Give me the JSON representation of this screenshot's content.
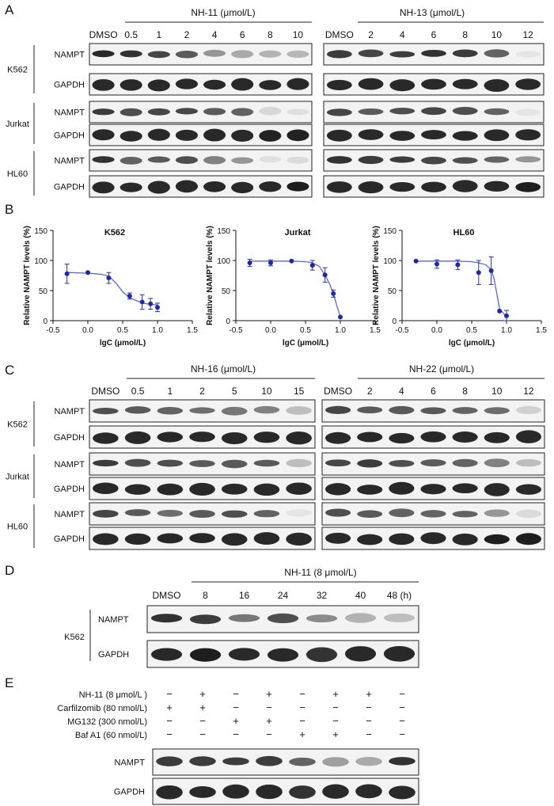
{
  "panels": {
    "A": {
      "letter": "A",
      "left": {
        "treatment": "NH-11 (μmol/L)",
        "lanes": [
          "DMSO",
          "0.5",
          "1",
          "2",
          "4",
          "6",
          "8",
          "10"
        ],
        "cells": [
          {
            "name": "K562",
            "rows": [
              {
                "label": "NAMPT",
                "kind": "nampt",
                "intensity": [
                  1.0,
                  0.95,
                  0.85,
                  0.75,
                  0.45,
                  0.35,
                  0.3,
                  0.28
                ]
              },
              {
                "label": "GAPDH",
                "kind": "gapdh",
                "intensity": [
                  0.95,
                  0.95,
                  0.95,
                  0.95,
                  0.95,
                  0.95,
                  0.95,
                  0.95
                ]
              }
            ]
          },
          {
            "name": "Jurkat",
            "rows": [
              {
                "label": "NAMPT",
                "kind": "nampt",
                "intensity": [
                  0.9,
                  0.8,
                  0.85,
                  0.85,
                  0.75,
                  0.7,
                  0.12,
                  0.08
                ]
              },
              {
                "label": "GAPDH",
                "kind": "gapdh",
                "intensity": [
                  0.95,
                  0.95,
                  0.95,
                  0.95,
                  0.95,
                  0.95,
                  0.98,
                  0.98
                ]
              }
            ]
          },
          {
            "name": "HL60",
            "rows": [
              {
                "label": "NAMPT",
                "kind": "nampt",
                "intensity": [
                  0.95,
                  0.7,
                  0.75,
                  0.8,
                  0.55,
                  0.45,
                  0.08,
                  0.1
                ]
              },
              {
                "label": "GAPDH",
                "kind": "gapdh",
                "intensity": [
                  0.95,
                  0.95,
                  0.95,
                  0.95,
                  0.95,
                  0.95,
                  0.95,
                  1.0
                ]
              }
            ]
          }
        ]
      },
      "right": {
        "treatment": "NH-13 (μmol/L)",
        "lanes": [
          "DMSO",
          "2",
          "4",
          "6",
          "8",
          "10",
          "12"
        ],
        "cells": [
          {
            "name": "K562",
            "rows": [
              {
                "label": "NAMPT",
                "kind": "nampt",
                "intensity": [
                  0.9,
                  0.85,
                  0.9,
                  0.95,
                  0.9,
                  0.7,
                  0.05
                ]
              },
              {
                "label": "GAPDH",
                "kind": "gapdh",
                "intensity": [
                  0.95,
                  0.95,
                  0.95,
                  0.95,
                  0.95,
                  0.95,
                  0.95
                ]
              }
            ]
          },
          {
            "name": "Jurkat",
            "rows": [
              {
                "label": "NAMPT",
                "kind": "nampt",
                "intensity": [
                  0.85,
                  0.75,
                  0.8,
                  0.85,
                  0.8,
                  0.7,
                  0.05
                ]
              },
              {
                "label": "GAPDH",
                "kind": "gapdh",
                "intensity": [
                  0.95,
                  0.95,
                  0.95,
                  0.95,
                  0.95,
                  0.95,
                  0.95
                ]
              }
            ]
          },
          {
            "name": "HL60",
            "rows": [
              {
                "label": "NAMPT",
                "kind": "nampt",
                "intensity": [
                  0.95,
                  0.9,
                  0.9,
                  0.85,
                  0.8,
                  0.7,
                  0.45
                ]
              },
              {
                "label": "GAPDH",
                "kind": "gapdh",
                "intensity": [
                  0.95,
                  0.95,
                  0.95,
                  0.95,
                  0.95,
                  0.95,
                  1.0
                ]
              }
            ]
          }
        ]
      }
    },
    "B": {
      "letter": "B"
    },
    "C": {
      "letter": "C",
      "left": {
        "treatment": "NH-16 (μmol/L)",
        "lanes": [
          "DMSO",
          "0.5",
          "1",
          "2",
          "5",
          "10",
          "15"
        ],
        "cells": [
          {
            "name": "K562",
            "rows": [
              {
                "label": "NAMPT",
                "kind": "nampt",
                "intensity": [
                  0.8,
                  0.75,
                  0.7,
                  0.65,
                  0.6,
                  0.55,
                  0.25
                ]
              },
              {
                "label": "GAPDH",
                "kind": "gapdh",
                "intensity": [
                  0.95,
                  0.95,
                  0.95,
                  0.95,
                  0.95,
                  0.95,
                  0.95
                ]
              }
            ]
          },
          {
            "name": "Jurkat",
            "rows": [
              {
                "label": "NAMPT",
                "kind": "nampt",
                "intensity": [
                  0.9,
                  0.8,
                  0.8,
                  0.75,
                  0.75,
                  0.75,
                  0.25
                ]
              },
              {
                "label": "GAPDH",
                "kind": "gapdh",
                "intensity": [
                  0.95,
                  0.95,
                  0.95,
                  0.95,
                  0.95,
                  0.95,
                  0.95
                ]
              }
            ]
          },
          {
            "name": "HL60",
            "rows": [
              {
                "label": "NAMPT",
                "kind": "nampt",
                "intensity": [
                  0.85,
                  0.75,
                  0.65,
                  0.75,
                  0.8,
                  0.7,
                  0.05
                ]
              },
              {
                "label": "GAPDH",
                "kind": "gapdh",
                "intensity": [
                  0.95,
                  0.95,
                  0.95,
                  0.95,
                  0.95,
                  0.95,
                  0.95
                ]
              }
            ]
          }
        ]
      },
      "right": {
        "treatment": "NH-22 (μmol/L)",
        "lanes": [
          "DMSO",
          "2",
          "4",
          "6",
          "8",
          "10",
          "12"
        ],
        "cells": [
          {
            "name": "K562",
            "rows": [
              {
                "label": "NAMPT",
                "kind": "nampt",
                "intensity": [
                  0.85,
                  0.75,
                  0.75,
                  0.75,
                  0.7,
                  0.65,
                  0.15
                ]
              },
              {
                "label": "GAPDH",
                "kind": "gapdh",
                "intensity": [
                  0.95,
                  0.95,
                  0.95,
                  0.95,
                  0.95,
                  0.95,
                  0.95
                ]
              }
            ]
          },
          {
            "name": "Jurkat",
            "rows": [
              {
                "label": "NAMPT",
                "kind": "nampt",
                "intensity": [
                  0.85,
                  0.9,
                  0.8,
                  0.75,
                  0.7,
                  0.55,
                  0.25
                ]
              },
              {
                "label": "GAPDH",
                "kind": "gapdh",
                "intensity": [
                  0.95,
                  0.95,
                  0.95,
                  0.95,
                  0.95,
                  0.95,
                  0.95
                ]
              }
            ]
          },
          {
            "name": "HL60",
            "rows": [
              {
                "label": "NAMPT",
                "kind": "nampt",
                "intensity": [
                  0.8,
                  0.75,
                  0.7,
                  0.7,
                  0.7,
                  0.45,
                  0.1
                ]
              },
              {
                "label": "GAPDH",
                "kind": "gapdh",
                "intensity": [
                  0.95,
                  0.95,
                  0.95,
                  0.95,
                  0.95,
                  1.0,
                  1.0
                ]
              }
            ]
          }
        ]
      }
    },
    "D": {
      "letter": "D",
      "treatment": "NH-11 (8 μmol/L)",
      "lanes": [
        "DMSO",
        "8",
        "16",
        "24",
        "32",
        "40",
        "48 (h)"
      ],
      "cells": [
        {
          "name": "K562",
          "rows": [
            {
              "label": "NAMPT",
              "kind": "nampt",
              "intensity": [
                0.95,
                0.9,
                0.6,
                0.8,
                0.5,
                0.3,
                0.25
              ]
            },
            {
              "label": "GAPDH",
              "kind": "gapdh",
              "intensity": [
                0.95,
                1.0,
                0.95,
                0.95,
                0.9,
                0.95,
                0.95
              ]
            }
          ]
        }
      ]
    },
    "E": {
      "letter": "E",
      "conditions": [
        {
          "label": "NH-11 (8 μmol/L )",
          "signs": [
            "−",
            "+",
            "−",
            "+",
            "−",
            "+",
            "+",
            "−"
          ]
        },
        {
          "label": "Carfilzomib (80 nmol/L)",
          "signs": [
            "+",
            "+",
            "−",
            "−",
            "−",
            "−",
            "−",
            "−"
          ]
        },
        {
          "label": "MG132 (300 nmol/L)",
          "signs": [
            "−",
            "−",
            "+",
            "+",
            "−",
            "−",
            "−",
            "−"
          ]
        },
        {
          "label": "Baf A1 (60 nmol/L)",
          "signs": [
            "−",
            "−",
            "−",
            "−",
            "+",
            "+",
            "−",
            "−"
          ]
        }
      ],
      "rows": [
        {
          "label": "NAMPT",
          "kind": "nampt",
          "intensity": [
            0.9,
            0.9,
            0.9,
            0.9,
            0.7,
            0.4,
            0.35,
            0.95
          ]
        },
        {
          "label": "GAPDH",
          "kind": "gapdh",
          "intensity": [
            0.95,
            0.95,
            0.95,
            0.95,
            0.9,
            0.95,
            0.95,
            0.95
          ]
        }
      ]
    }
  },
  "chart_data": [
    {
      "type": "scatter",
      "title": "K562",
      "xlabel": "lgC (μmol/L)",
      "ylabel": "Relative NAMPT levels (%)",
      "xlim": [
        -0.5,
        1.5
      ],
      "ylim": [
        0,
        150
      ],
      "xticks": [
        "-0.5",
        "0.0",
        "0.5",
        "1.0",
        "1.5"
      ],
      "yticks": [
        "0",
        "50",
        "100",
        "150"
      ],
      "x": [
        -0.3,
        0.0,
        0.3,
        0.6,
        0.78,
        0.9,
        1.0
      ],
      "y": [
        78,
        80,
        71,
        41,
        31,
        28,
        22
      ],
      "err": [
        16,
        0,
        9,
        5,
        12,
        9,
        7
      ],
      "fit_x": [
        -0.3,
        0.0,
        0.2,
        0.3,
        0.4,
        0.5,
        0.6,
        0.7,
        0.8,
        0.9,
        1.0
      ],
      "fit_y": [
        80,
        79,
        77,
        74,
        63,
        48,
        38,
        33,
        29,
        27,
        26
      ]
    },
    {
      "type": "scatter",
      "title": "Jurkat",
      "xlabel": "lgC (μmol/L)",
      "ylabel": "Relative NAMPT levels (%)",
      "xlim": [
        -0.5,
        1.5
      ],
      "ylim": [
        0,
        150
      ],
      "xticks": [
        "-0.5",
        "0.0",
        "0.5",
        "1.0",
        "1.5"
      ],
      "yticks": [
        "0",
        "50",
        "100",
        "150"
      ],
      "x": [
        -0.3,
        0.0,
        0.3,
        0.6,
        0.78,
        0.9,
        1.0
      ],
      "y": [
        96,
        96,
        99,
        92,
        76,
        45,
        6
      ],
      "err": [
        6,
        5,
        0,
        8,
        12,
        6,
        0
      ],
      "fit_x": [
        -0.3,
        0.0,
        0.3,
        0.5,
        0.6,
        0.7,
        0.78,
        0.85,
        0.9,
        0.95,
        1.0
      ],
      "fit_y": [
        99,
        99,
        99,
        98,
        96,
        90,
        76,
        60,
        45,
        25,
        6
      ]
    },
    {
      "type": "scatter",
      "title": "HL60",
      "xlabel": "lgC (μmol/L)",
      "ylabel": "Relative NAMPT levels (%)",
      "xlim": [
        -0.5,
        1.5
      ],
      "ylim": [
        0,
        150
      ],
      "xticks": [
        "-0.5",
        "0.0",
        "0.5",
        "1.0",
        "1.5"
      ],
      "yticks": [
        "0",
        "50",
        "100",
        "150"
      ],
      "x": [
        -0.3,
        0.0,
        0.3,
        0.6,
        0.78,
        0.9,
        1.0
      ],
      "y": [
        99,
        94,
        93,
        80,
        83,
        16,
        8
      ],
      "err": [
        0,
        7,
        8,
        20,
        23,
        0,
        9
      ],
      "fit_x": [
        -0.3,
        0.0,
        0.3,
        0.5,
        0.6,
        0.7,
        0.78,
        0.82,
        0.86,
        0.9,
        1.0
      ],
      "fit_y": [
        99,
        99,
        99,
        98,
        96,
        93,
        85,
        70,
        45,
        20,
        6
      ]
    }
  ]
}
